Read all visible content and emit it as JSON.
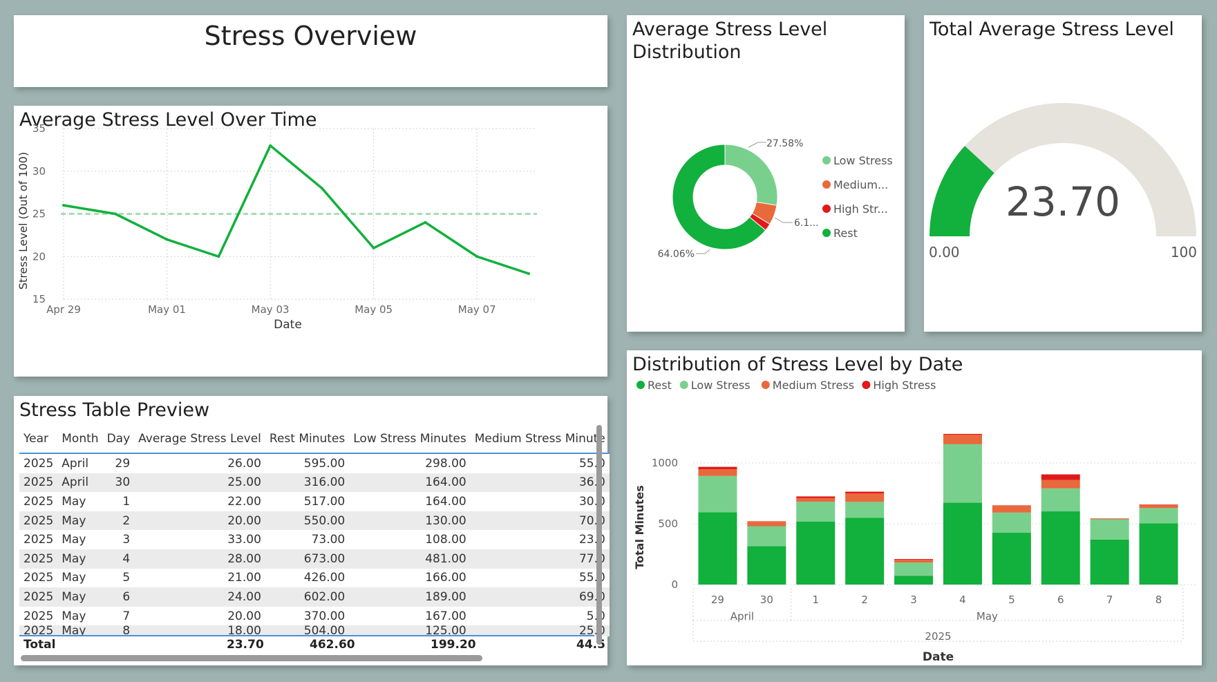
{
  "page_title": "Stress Overview",
  "colors": {
    "rest": "#12b03c",
    "low": "#79d08d",
    "medium": "#e8693c",
    "high": "#e01a1a",
    "gauge_track": "#e6e2dc"
  },
  "line_chart": {
    "title": "Average Stress Level Over Time",
    "xlabel": "Date",
    "ylabel": "Stress Level (Out of 100)",
    "y_ticks": [
      "15",
      "20",
      "25",
      "30",
      "35"
    ],
    "x_ticks": [
      "Apr 29",
      "May 01",
      "May 03",
      "May 05",
      "May 07"
    ]
  },
  "donut_chart": {
    "title_line1": "Average Stress Level",
    "title_line2": "Distribution",
    "labels": {
      "low": "27.58%",
      "small": "6.1...",
      "rest": "64.06%"
    },
    "legend": [
      "Low Stress",
      "Medium...",
      "High Str...",
      "Rest"
    ]
  },
  "gauge": {
    "title": "Total Average Stress Level",
    "value_label": "23.70",
    "min_label": "0.00",
    "max_label": "100"
  },
  "table": {
    "title": "Stress Table Preview",
    "columns": [
      "Year",
      "Month",
      "Day",
      "Average Stress Level",
      "Rest Minutes",
      "Low Stress Minutes",
      "Medium Stress Minute"
    ],
    "rows": [
      [
        "2025",
        "April",
        "29",
        "26.00",
        "595.00",
        "298.00",
        "55.0"
      ],
      [
        "2025",
        "April",
        "30",
        "25.00",
        "316.00",
        "164.00",
        "36.0"
      ],
      [
        "2025",
        "May",
        "1",
        "22.00",
        "517.00",
        "164.00",
        "30.0"
      ],
      [
        "2025",
        "May",
        "2",
        "20.00",
        "550.00",
        "130.00",
        "70.0"
      ],
      [
        "2025",
        "May",
        "3",
        "33.00",
        "73.00",
        "108.00",
        "23.0"
      ],
      [
        "2025",
        "May",
        "4",
        "28.00",
        "673.00",
        "481.00",
        "77.0"
      ],
      [
        "2025",
        "May",
        "5",
        "21.00",
        "426.00",
        "166.00",
        "55.0"
      ],
      [
        "2025",
        "May",
        "6",
        "24.00",
        "602.00",
        "189.00",
        "69.0"
      ],
      [
        "2025",
        "May",
        "7",
        "20.00",
        "370.00",
        "167.00",
        "5.0"
      ],
      [
        "2025",
        "May",
        "8",
        "18.00",
        "504.00",
        "125.00",
        "25.0"
      ]
    ],
    "total": {
      "label": "Total",
      "avg": "23.70",
      "rest": "462.60",
      "low": "199.20",
      "medium": "44.5"
    }
  },
  "bar_chart": {
    "title": "Distribution of Stress Level by Date",
    "legend": [
      "Rest",
      "Low Stress",
      "Medium Stress",
      "High Stress"
    ],
    "ylabel": "Total Minutes",
    "xlabel": "Date",
    "y_ticks": [
      "0",
      "500",
      "1000"
    ],
    "months": [
      "April",
      "May"
    ],
    "year": "2025"
  },
  "chart_data": [
    {
      "type": "line",
      "title": "Average Stress Level Over Time",
      "xlabel": "Date",
      "ylabel": "Stress Level (Out of 100)",
      "x": [
        "2025-04-29",
        "2025-04-30",
        "2025-05-01",
        "2025-05-02",
        "2025-05-03",
        "2025-05-04",
        "2025-05-05",
        "2025-05-06",
        "2025-05-07",
        "2025-05-08"
      ],
      "values": [
        26,
        25,
        22,
        20,
        33,
        28,
        21,
        24,
        20,
        18
      ],
      "reference_line": 25,
      "ylim": [
        15,
        35
      ],
      "grid": true
    },
    {
      "type": "pie",
      "title": "Average Stress Level Distribution",
      "categories": [
        "Low Stress",
        "Medium Stress",
        "High Stress",
        "Rest"
      ],
      "values": [
        27.58,
        6.1,
        2.26,
        64.06
      ],
      "legend": "right"
    },
    {
      "type": "gauge",
      "title": "Total Average Stress Level",
      "value": 23.7,
      "min": 0,
      "max": 100
    },
    {
      "type": "bar",
      "stacked": true,
      "title": "Distribution of Stress Level by Date",
      "xlabel": "Date",
      "ylabel": "Total Minutes",
      "categories": [
        "29",
        "30",
        "1",
        "2",
        "3",
        "4",
        "5",
        "6",
        "7",
        "8"
      ],
      "series": [
        {
          "name": "Rest",
          "values": [
            595,
            316,
            517,
            550,
            73,
            673,
            426,
            602,
            370,
            504
          ]
        },
        {
          "name": "Low Stress",
          "values": [
            298,
            164,
            164,
            130,
            108,
            481,
            166,
            189,
            167,
            125
          ]
        },
        {
          "name": "Medium Stress",
          "values": [
            55,
            36,
            30,
            70,
            23,
            77,
            55,
            69,
            5,
            25
          ]
        },
        {
          "name": "High Stress",
          "values": [
            20,
            4,
            14,
            14,
            6,
            8,
            4,
            46,
            2,
            4
          ]
        }
      ],
      "ylim": [
        0,
        1300
      ],
      "legend": "top-left",
      "grid": true
    }
  ]
}
